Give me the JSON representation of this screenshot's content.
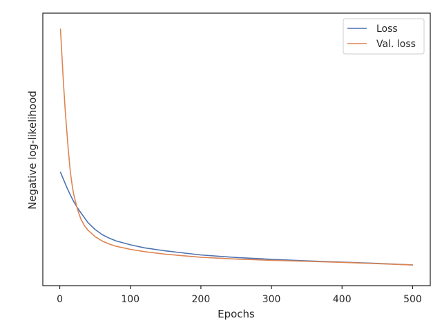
{
  "chart_data": {
    "type": "line",
    "xlabel": "Epochs",
    "ylabel": "Negative log-likelihood",
    "xlim": [
      -24,
      525
    ],
    "ylim": [
      0,
      1
    ],
    "x_ticks": [
      0,
      100,
      200,
      300,
      400,
      500
    ],
    "y_ticks_shown": false,
    "grid": false,
    "legend_position": "top-right",
    "series": [
      {
        "name": "Loss",
        "color": "#4c72b0",
        "x": [
          1,
          5,
          10,
          15,
          20,
          25,
          30,
          40,
          50,
          60,
          70,
          80,
          100,
          120,
          150,
          200,
          250,
          300,
          350,
          400,
          450,
          500
        ],
        "y": [
          0.409,
          0.383,
          0.35,
          0.32,
          0.293,
          0.27,
          0.25,
          0.212,
          0.185,
          0.165,
          0.151,
          0.14,
          0.125,
          0.113,
          0.101,
          0.085,
          0.075,
          0.068,
          0.062,
          0.057,
          0.052,
          0.046
        ]
      },
      {
        "name": "Val. loss",
        "color": "#dd8452",
        "x": [
          1,
          3,
          5,
          8,
          10,
          12,
          15,
          18,
          20,
          25,
          30,
          35,
          40,
          50,
          60,
          70,
          80,
          100,
          120,
          150,
          200,
          250,
          300,
          350,
          400,
          450,
          500
        ],
        "y": [
          0.97,
          0.87,
          0.77,
          0.64,
          0.57,
          0.5,
          0.41,
          0.35,
          0.32,
          0.265,
          0.225,
          0.2,
          0.182,
          0.157,
          0.14,
          0.128,
          0.119,
          0.107,
          0.098,
          0.088,
          0.076,
          0.069,
          0.064,
          0.06,
          0.056,
          0.051,
          0.046
        ]
      }
    ]
  }
}
